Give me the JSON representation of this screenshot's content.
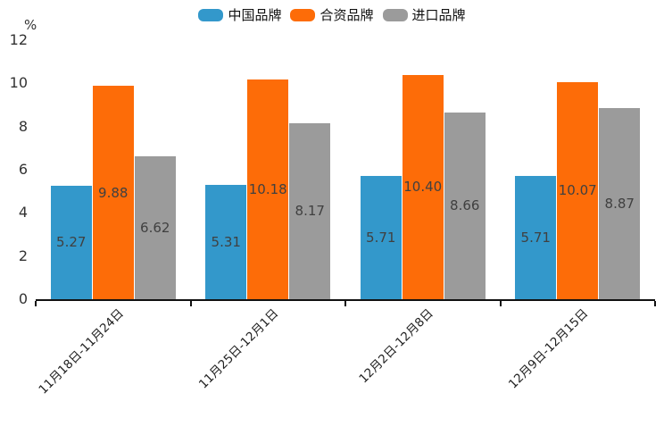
{
  "chart_data": {
    "type": "bar",
    "title": "",
    "categories": [
      "11月18日-11月24日",
      "11月25日-12月1日",
      "12月2日-12月8日",
      "12月9日-12月15日"
    ],
    "series": [
      {
        "name": "中国品牌",
        "color": "#3398CB",
        "values": [
          5.27,
          5.31,
          5.71,
          5.71
        ],
        "labels": [
          "5.27",
          "5.31",
          "5.71",
          "5.71"
        ]
      },
      {
        "name": "合资品牌",
        "color": "#FD6C08",
        "values": [
          9.88,
          10.18,
          10.4,
          10.07
        ],
        "labels": [
          "9.88",
          "10.18",
          "10.40",
          "10.07"
        ]
      },
      {
        "name": "进口品牌",
        "color": "#9B9B9B",
        "values": [
          6.62,
          8.17,
          8.66,
          8.87
        ],
        "labels": [
          "6.62",
          "8.17",
          "8.66",
          "8.87"
        ]
      }
    ],
    "xlabel": "",
    "ylabel": "%",
    "ylim": [
      0,
      12
    ],
    "yticks": [
      0,
      2,
      4,
      6,
      8,
      10,
      12
    ],
    "grid": false,
    "legend_position": "top",
    "value_labels_shown": true,
    "colors": {
      "axis_line": "#111111",
      "axis_text": "#333333",
      "value_label_text": "#404040",
      "background": "#FFFFFF"
    }
  }
}
